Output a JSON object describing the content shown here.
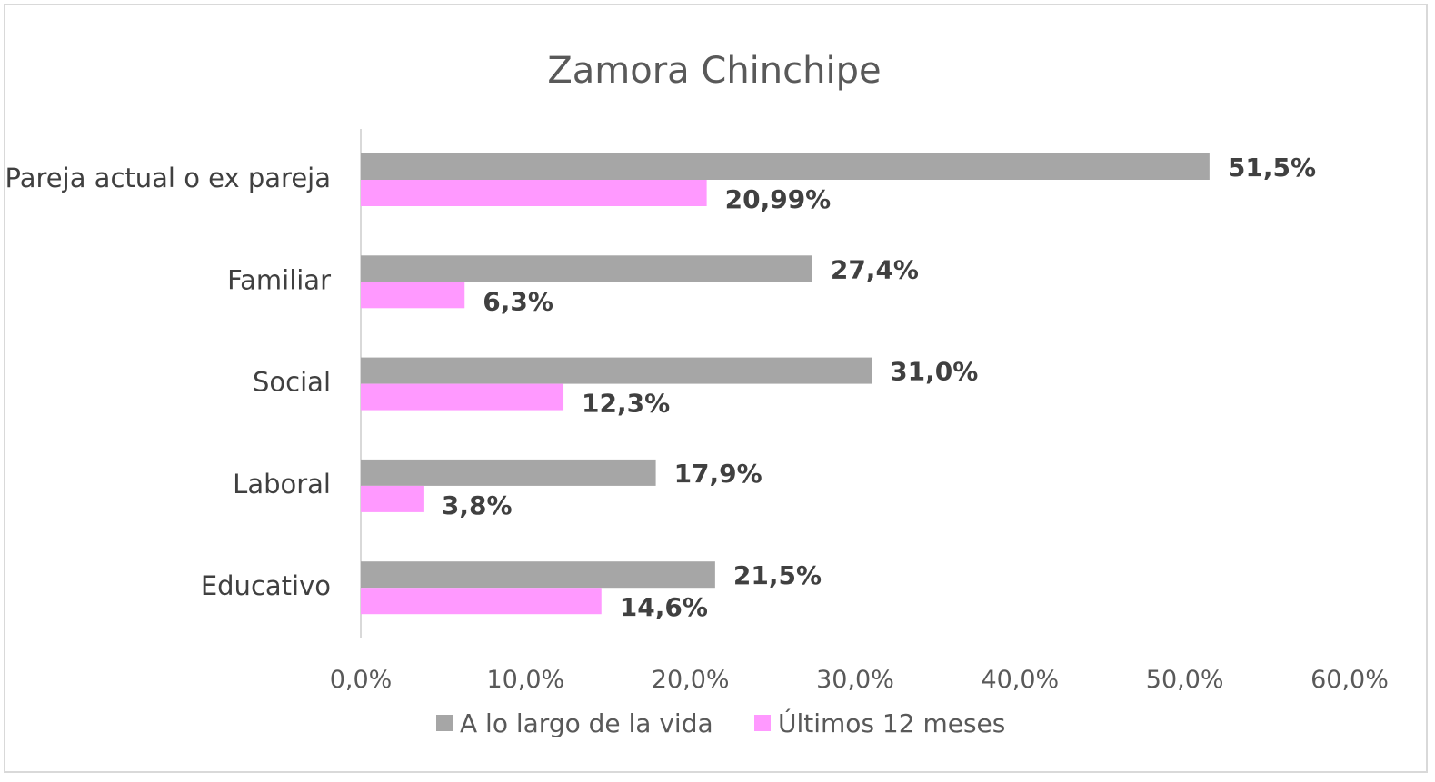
{
  "chart_data": {
    "type": "bar",
    "orientation": "horizontal",
    "title": "Zamora Chinchipe",
    "categories": [
      "Pareja actual o ex pareja",
      "Familiar",
      "Social",
      "Laboral",
      "Educativo"
    ],
    "series": [
      {
        "name": "A lo largo de la vida",
        "color": "#a6a6a6",
        "values": [
          51.5,
          27.4,
          31.0,
          17.9,
          21.5
        ],
        "labels": [
          "51,5%",
          "27,4%",
          "31,0%",
          "17,9%",
          "21,5%"
        ]
      },
      {
        "name": "Últimos 12 meses",
        "color": "#ff99ff",
        "values": [
          20.99,
          6.3,
          12.3,
          3.8,
          14.6
        ],
        "labels": [
          "20,99%",
          "6,3%",
          "12,3%",
          "3,8%",
          "14,6%"
        ]
      }
    ],
    "xlim": [
      0,
      60
    ],
    "xticks": [
      0,
      10,
      20,
      30,
      40,
      50,
      60
    ],
    "xtick_labels": [
      "0,0%",
      "10,0%",
      "20,0%",
      "30,0%",
      "40,0%",
      "50,0%",
      "60,0%"
    ],
    "grid": false,
    "legend_position": "bottom"
  }
}
